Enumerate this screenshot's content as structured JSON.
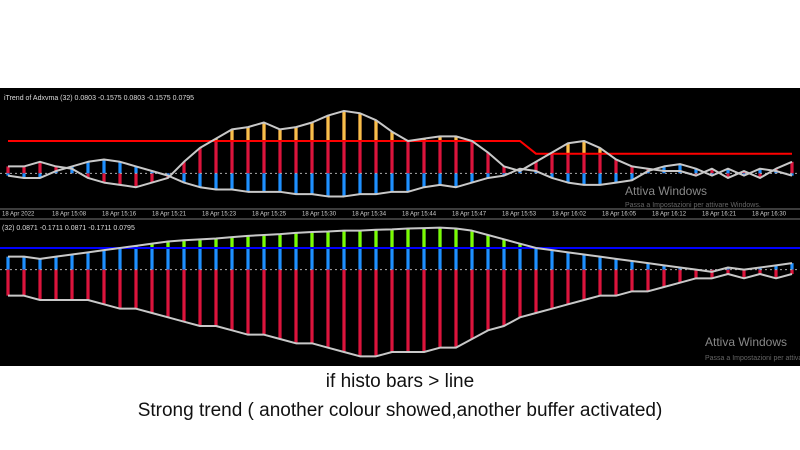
{
  "chart_data": [
    {
      "type": "bar",
      "title": "iTrend of Adxvma (32) 0.0803 -0.1575 0.0803 -0.1575 0.0795",
      "ylim": [
        -0.15,
        0.3
      ],
      "line_color": "#c8c8c8",
      "series": [
        {
          "color": "#dc143c",
          "highlight_color": "#f7c04a",
          "values": [
            0.03,
            0.03,
            0.05,
            0.03,
            0.02,
            -0.02,
            -0.04,
            -0.05,
            -0.06,
            -0.04,
            -0.02,
            0.05,
            0.11,
            0.15,
            0.19,
            0.2,
            0.22,
            0.19,
            0.2,
            0.22,
            0.25,
            0.27,
            0.26,
            0.23,
            0.18,
            0.14,
            0.15,
            0.16,
            0.16,
            0.14,
            0.09,
            0.03,
            0.01,
            0.05,
            0.09,
            0.13,
            0.14,
            0.11,
            0.06,
            0.03,
            0.02,
            0.01,
            0.01,
            -0.01,
            0.02,
            -0.02,
            0.01,
            -0.02,
            0.02,
            0.05
          ]
        },
        {
          "color": "#1e90ff",
          "values": [
            -0.01,
            -0.02,
            -0.02,
            0.01,
            0.03,
            0.05,
            0.06,
            0.05,
            0.03,
            0.01,
            -0.01,
            -0.04,
            -0.06,
            -0.07,
            -0.07,
            -0.08,
            -0.08,
            -0.08,
            -0.09,
            -0.09,
            -0.1,
            -0.1,
            -0.09,
            -0.09,
            -0.08,
            -0.08,
            -0.06,
            -0.05,
            -0.06,
            -0.04,
            -0.02,
            -0.01,
            0.02,
            0.01,
            -0.02,
            -0.04,
            -0.05,
            -0.05,
            -0.04,
            -0.03,
            0.01,
            0.03,
            0.04,
            0.02,
            -0.01,
            0.02,
            -0.01,
            0.02,
            0.01,
            -0.01
          ]
        }
      ],
      "level": {
        "color": "#ff0000",
        "values": [
          0.14,
          0.14,
          0.14,
          0.14,
          0.14,
          0.14,
          0.14,
          0.14,
          0.14,
          0.14,
          0.14,
          0.14,
          0.14,
          0.14,
          0.14,
          0.14,
          0.14,
          0.14,
          0.14,
          0.14,
          0.14,
          0.14,
          0.14,
          0.14,
          0.14,
          0.14,
          0.14,
          0.14,
          0.14,
          0.14,
          0.14,
          0.14,
          0.14,
          0.085,
          0.085,
          0.085,
          0.085,
          0.085,
          0.085,
          0.085,
          0.085,
          0.085,
          0.085,
          0.085,
          0.085,
          0.085,
          0.085,
          0.085,
          0.085,
          0.085
        ]
      }
    },
    {
      "type": "bar",
      "title": "(32) 0.0871 -0.1711 0.0871 -0.1711 0.0795",
      "ylim": [
        -0.22,
        0.11
      ],
      "line_color": "#c8c8c8",
      "series": [
        {
          "color": "#1e90ff",
          "highlight_color": "#7cfc00",
          "values": [
            0.03,
            0.03,
            0.025,
            0.03,
            0.035,
            0.04,
            0.045,
            0.05,
            0.055,
            0.06,
            0.065,
            0.068,
            0.07,
            0.072,
            0.075,
            0.078,
            0.08,
            0.082,
            0.085,
            0.087,
            0.088,
            0.09,
            0.09,
            0.092,
            0.093,
            0.095,
            0.096,
            0.097,
            0.095,
            0.09,
            0.08,
            0.07,
            0.06,
            0.05,
            0.045,
            0.04,
            0.035,
            0.03,
            0.025,
            0.02,
            0.015,
            0.01,
            0.005,
            0.0,
            -0.005,
            0.005,
            0.0,
            0.005,
            0.01,
            0.015
          ]
        },
        {
          "color": "#dc143c",
          "values": [
            -0.06,
            -0.06,
            -0.07,
            -0.07,
            -0.07,
            -0.07,
            -0.08,
            -0.09,
            -0.09,
            -0.1,
            -0.11,
            -0.12,
            -0.13,
            -0.13,
            -0.14,
            -0.15,
            -0.15,
            -0.16,
            -0.17,
            -0.17,
            -0.18,
            -0.19,
            -0.2,
            -0.2,
            -0.19,
            -0.19,
            -0.19,
            -0.18,
            -0.18,
            -0.16,
            -0.14,
            -0.13,
            -0.11,
            -0.1,
            -0.09,
            -0.08,
            -0.07,
            -0.06,
            -0.06,
            -0.05,
            -0.05,
            -0.04,
            -0.03,
            -0.02,
            -0.02,
            -0.01,
            -0.02,
            -0.01,
            -0.02,
            -0.01
          ]
        }
      ],
      "level": {
        "color": "#0000ff",
        "values": 0.05
      }
    }
  ],
  "time_axis": [
    "18 Apr 2022",
    "18 Apr 15:08",
    "18 Apr 15:16",
    "18 Apr 15:21",
    "18 Apr 15:23",
    "18 Apr 15:25",
    "18 Apr 15:30",
    "18 Apr 15:34",
    "18 Apr 15:44",
    "18 Apr 15:47",
    "18 Apr 15:53",
    "18 Apr 16:02",
    "18 Apr 16:05",
    "18 Apr 16:12",
    "18 Apr 16:21",
    "18 Apr 16:30"
  ],
  "watermark": {
    "title": "Attiva Windows",
    "text": "Passa a Impostazioni per attivare Windows."
  },
  "caption": [
    "if histo bars > line",
    "Strong trend ( another colour showed,another buffer activated)"
  ]
}
